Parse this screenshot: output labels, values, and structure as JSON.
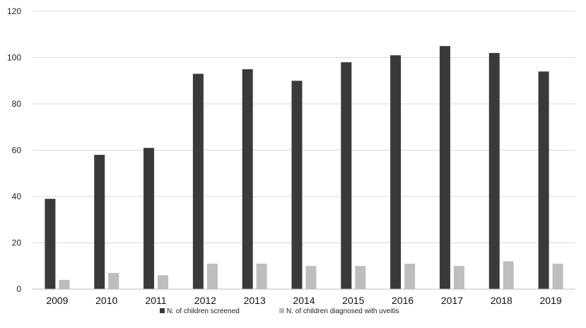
{
  "chart_data": {
    "type": "bar",
    "title": "",
    "xlabel": "",
    "ylabel": "",
    "categories": [
      "2009",
      "2010",
      "2011",
      "2012",
      "2013",
      "2014",
      "2015",
      "2016",
      "2017",
      "2018",
      "2019"
    ],
    "series": [
      {
        "name": "N. of children screened",
        "color": "#3a3a3a",
        "values": [
          39,
          58,
          61,
          93,
          95,
          90,
          98,
          101,
          105,
          102,
          94
        ]
      },
      {
        "name": "N. of children diagnosed with uveitis",
        "color": "#bdbdbd",
        "values": [
          4,
          7,
          6,
          11,
          11,
          10,
          10,
          11,
          10,
          12,
          11
        ]
      }
    ],
    "ylim": [
      0,
      120
    ],
    "yticks": [
      0,
      20,
      40,
      60,
      80,
      100,
      120
    ],
    "grid": true,
    "legend_position": "bottom-center"
  }
}
